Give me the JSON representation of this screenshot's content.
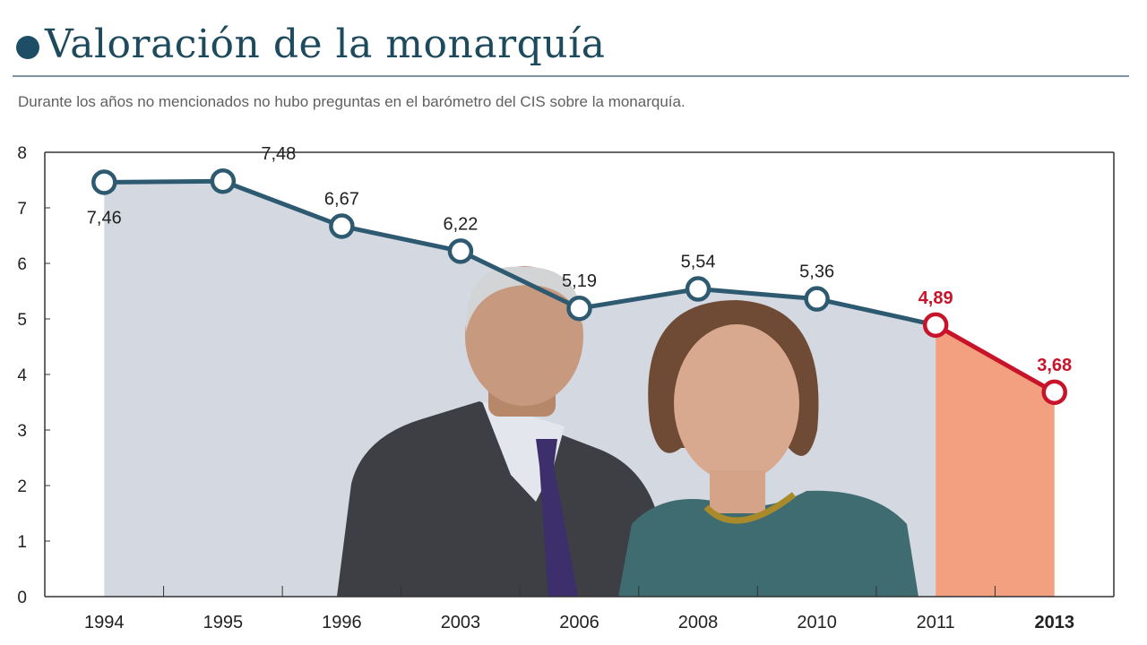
{
  "header": {
    "title": "Valoración de la monarquía",
    "subtitle": "Durante los años no mencionados no hubo preguntas en el barómetro del CIS sobre la monarquía."
  },
  "colors": {
    "accent": "#1e4e66",
    "line": "#2d5a70",
    "area": "#d3d8e1",
    "highlight": "#c8142a",
    "highlight_fill": "#f2a07f",
    "title": "#1d4a5c"
  },
  "chart_data": {
    "type": "line",
    "title": "Valoración de la monarquía",
    "subtitle": "Durante los años no mencionados no hubo preguntas en el barómetro del CIS sobre la monarquía.",
    "categories": [
      "1994",
      "1995",
      "1996",
      "2003",
      "2006",
      "2008",
      "2010",
      "2011",
      "2013"
    ],
    "values": [
      7.46,
      7.48,
      6.67,
      6.22,
      5.19,
      5.54,
      5.36,
      4.89,
      3.68
    ],
    "data_labels": [
      "7,46",
      "7,48",
      "6,67",
      "6,22",
      "5,19",
      "5,54",
      "5,36",
      "4,89",
      "3,68"
    ],
    "highlighted_categories": [
      "2011",
      "2013"
    ],
    "bold_categories": [
      "2013"
    ],
    "y_ticks": [
      "0",
      "1",
      "2",
      "3",
      "4",
      "5",
      "6",
      "7",
      "8"
    ],
    "ylim": [
      0,
      8
    ],
    "xlabel": "",
    "ylabel": "",
    "grid": false,
    "legend": "none",
    "background_photo": "Juan Carlos I y Sofía de Grecia"
  }
}
